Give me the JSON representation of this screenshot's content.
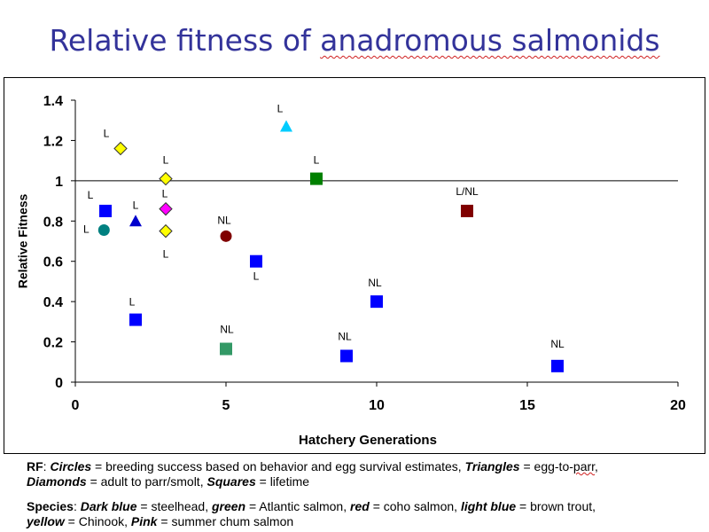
{
  "title": {
    "prefix": "Relative fitness of ",
    "underlined": "anadromous salmonids"
  },
  "chart_data": {
    "type": "scatter",
    "title": "",
    "xlabel": "Hatchery Generations",
    "ylabel": "Relative Fitness",
    "xlim": [
      0,
      20
    ],
    "ylim": [
      0,
      1.4
    ],
    "xticks": [
      "0",
      "5",
      "10",
      "15",
      "20"
    ],
    "yticks": [
      "0",
      "0.2",
      "0.4",
      "0.6",
      "0.8",
      "1",
      "1.2",
      "1.4"
    ],
    "reference_line_y": 1,
    "grid": false,
    "points": [
      {
        "x": 1.5,
        "y": 1.16,
        "shape": "diamond",
        "color": "#ffff00",
        "label": "L"
      },
      {
        "x": 3,
        "y": 1.01,
        "shape": "diamond",
        "color": "#ffff00",
        "label": "L"
      },
      {
        "x": 3,
        "y": 0.75,
        "shape": "diamond",
        "color": "#ffff00",
        "label": "L"
      },
      {
        "x": 3,
        "y": 0.86,
        "shape": "diamond",
        "color": "#ff00ff",
        "label": "L"
      },
      {
        "x": 7,
        "y": 1.27,
        "shape": "triangle",
        "color": "#00ccff",
        "label": "L"
      },
      {
        "x": 2,
        "y": 0.8,
        "shape": "triangle",
        "color": "#0000cc",
        "label": "L"
      },
      {
        "x": 8,
        "y": 1.01,
        "shape": "square",
        "color": "#008000",
        "label": "L"
      },
      {
        "x": 1,
        "y": 0.85,
        "shape": "square",
        "color": "#0000ff",
        "label": "L"
      },
      {
        "x": 0.95,
        "y": 0.755,
        "shape": "circle",
        "color": "#008080",
        "label": "L"
      },
      {
        "x": 5,
        "y": 0.725,
        "shape": "circle",
        "color": "#800000",
        "label": "NL"
      },
      {
        "x": 13,
        "y": 0.85,
        "shape": "square",
        "color": "#800000",
        "label": "L/NL"
      },
      {
        "x": 6,
        "y": 0.6,
        "shape": "square",
        "color": "#0000ff",
        "label": "L"
      },
      {
        "x": 2,
        "y": 0.31,
        "shape": "square",
        "color": "#0000ff",
        "label": "L"
      },
      {
        "x": 10,
        "y": 0.4,
        "shape": "square",
        "color": "#0000ff",
        "label": "NL"
      },
      {
        "x": 5,
        "y": 0.165,
        "shape": "square",
        "color": "#339966",
        "label": "NL"
      },
      {
        "x": 9,
        "y": 0.13,
        "shape": "square",
        "color": "#0000ff",
        "label": "NL"
      },
      {
        "x": 16,
        "y": 0.08,
        "shape": "square",
        "color": "#0000ff",
        "label": "NL"
      }
    ]
  },
  "notes": {
    "rf": {
      "lead": "RF",
      "colon": ":  ",
      "circles": "Circles",
      "circles_desc": " = breeding success based on behavior and egg survival estimates, ",
      "triangles": "Triangles",
      "triangles_desc": " = egg-to-",
      "parr": "parr",
      "comma": ",",
      "diamonds": "Diamonds",
      "diamonds_desc": " = adult to parr/smolt, ",
      "squares": "Squares",
      "squares_desc": " = lifetime"
    },
    "species": {
      "lead": "Species",
      "colon": ": ",
      "dark_blue": "Dark blue",
      "dark_blue_desc": " = steelhead, ",
      "green": "green",
      "green_desc": " = Atlantic salmon, ",
      "red": "red",
      "red_desc": " = coho salmon, ",
      "light_blue": "light blue",
      "light_blue_desc": " = brown trout,",
      "yellow": "yellow",
      "yellow_desc": " = Chinook, ",
      "pink": "Pink",
      "pink_desc": " = summer chum salmon"
    }
  }
}
